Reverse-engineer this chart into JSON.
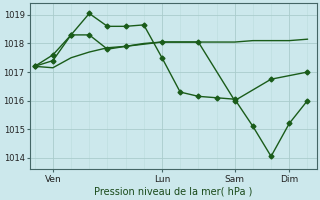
{
  "background_color": "#cce8ec",
  "grid_color_major": "#aacccc",
  "grid_color_minor": "#bbdddd",
  "line_color": "#1a5c1a",
  "ylabel_ticks": [
    1014,
    1015,
    1016,
    1017,
    1018,
    1019
  ],
  "ylim": [
    1013.6,
    1019.4
  ],
  "xlabel": "Pression niveau de la mer( hPa )",
  "xtick_labels": [
    "Ven",
    "Lun",
    "Sam",
    "Dim"
  ],
  "xtick_positions": [
    2,
    14,
    22,
    28
  ],
  "series1_x": [
    0,
    2,
    4,
    6,
    8,
    10,
    12,
    14,
    16,
    18,
    20,
    22,
    24,
    26,
    28,
    30
  ],
  "series1_y": [
    1017.2,
    1017.15,
    1017.5,
    1017.7,
    1017.85,
    1017.9,
    1018.0,
    1018.05,
    1018.05,
    1018.05,
    1018.05,
    1018.05,
    1018.1,
    1018.1,
    1018.1,
    1018.15
  ],
  "series2_x": [
    0,
    2,
    4,
    6,
    8,
    10,
    14,
    18,
    22,
    26,
    30
  ],
  "series2_y": [
    1017.2,
    1017.6,
    1018.3,
    1018.3,
    1017.8,
    1017.9,
    1018.05,
    1018.05,
    1016.0,
    1016.75,
    1017.0
  ],
  "series3_x": [
    0,
    2,
    4,
    6,
    8,
    10,
    12,
    14,
    16,
    18,
    20,
    22,
    24,
    26,
    28,
    30
  ],
  "series3_y": [
    1017.2,
    1017.4,
    1018.3,
    1019.05,
    1018.6,
    1018.6,
    1018.65,
    1017.5,
    1016.3,
    1016.15,
    1016.1,
    1016.05,
    1015.1,
    1014.05,
    1015.2,
    1016.0
  ],
  "xlim": [
    -0.5,
    31
  ],
  "figsize": [
    3.2,
    2.0
  ],
  "dpi": 100
}
